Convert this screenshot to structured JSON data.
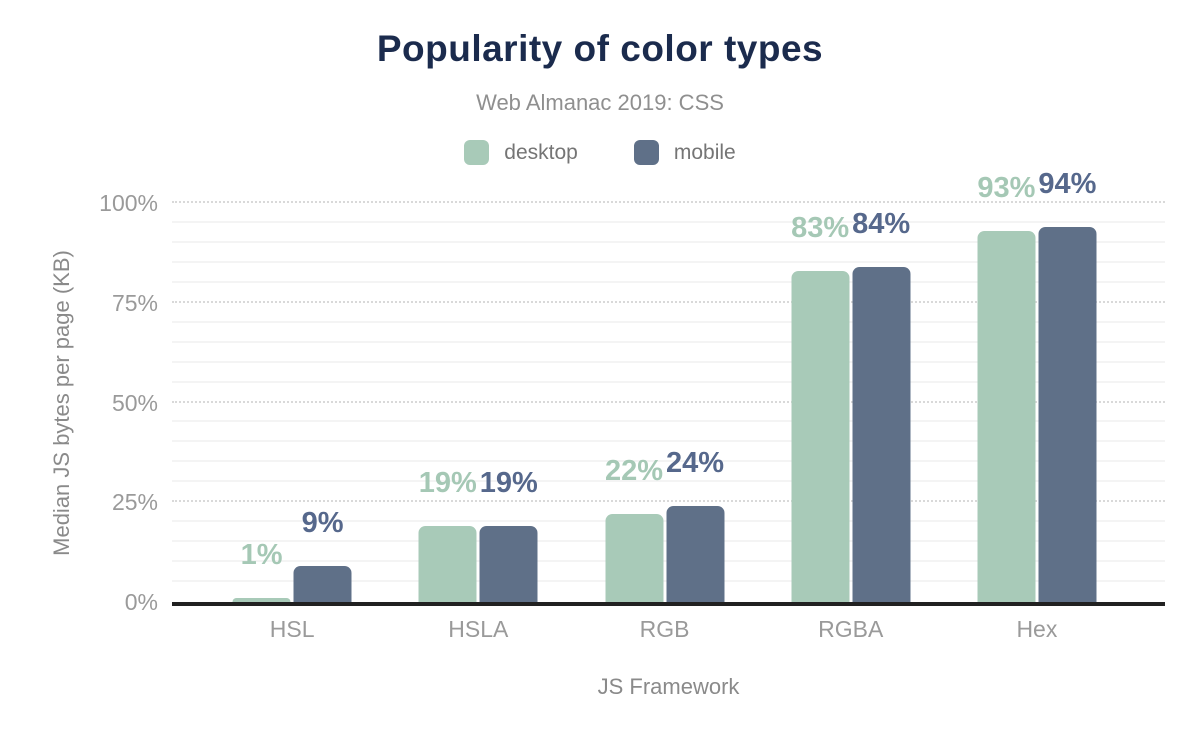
{
  "chart_data": {
    "type": "bar",
    "title": "Popularity of color types",
    "subtitle": "Web Almanac 2019: CSS",
    "xlabel": "JS Framework",
    "ylabel": "Median JS bytes per page (KB)",
    "categories": [
      "HSL",
      "HSLA",
      "RGB",
      "RGBA",
      "Hex"
    ],
    "series": [
      {
        "name": "desktop",
        "color": "#a8cab8",
        "label_color": "#a5c8b5",
        "values": [
          1,
          19,
          22,
          83,
          93
        ],
        "value_labels": [
          "1%",
          "19%",
          "22%",
          "83%",
          "93%"
        ]
      },
      {
        "name": "mobile",
        "color": "#5f7088",
        "label_color": "#56688c",
        "values": [
          9,
          19,
          24,
          84,
          94
        ],
        "value_labels": [
          "9%",
          "19%",
          "24%",
          "84%",
          "94%"
        ]
      }
    ],
    "ylim": [
      0,
      100
    ],
    "yticks": [
      {
        "value": 0,
        "label": "0%"
      },
      {
        "value": 25,
        "label": "25%"
      },
      {
        "value": 50,
        "label": "50%"
      },
      {
        "value": 75,
        "label": "75%"
      },
      {
        "value": 100,
        "label": "100%"
      }
    ],
    "grid": {
      "minor_step": 5,
      "major_step": 25,
      "major_style": "dotted",
      "minor_style": "solid"
    },
    "legend_position": "top",
    "colors": {
      "title": "#1b2b4d",
      "subtitle": "#8f8f8f",
      "axis_line": "#212121",
      "tick_text": "#9a9a9a",
      "axis_title_text": "#8a8a8a"
    }
  }
}
